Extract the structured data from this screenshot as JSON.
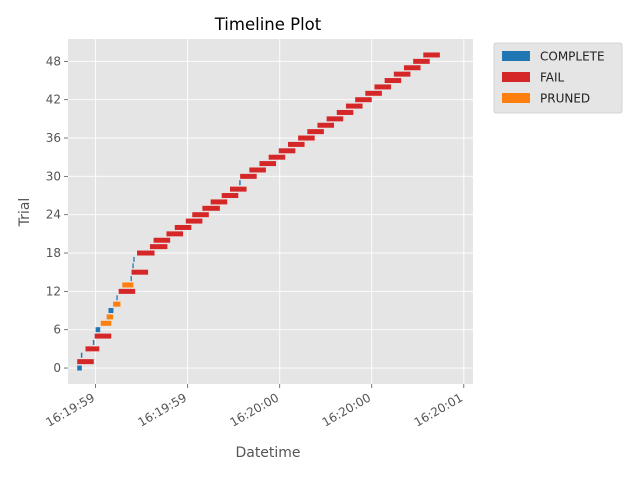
{
  "chart_data": {
    "type": "timeline",
    "title": "Timeline Plot",
    "xlabel": "Datetime",
    "ylabel": "Trial",
    "ylim": [
      -2.5,
      51.5
    ],
    "y_ticks": [
      0,
      6,
      12,
      18,
      24,
      30,
      36,
      42,
      48
    ],
    "x_tick_labels": [
      "16:19:59",
      "16:19:59",
      "16:20:00",
      "16:20:00",
      "16:20:01"
    ],
    "x_tick_seconds": [
      0.1,
      0.6,
      1.1,
      1.6,
      2.1
    ],
    "xlim_seconds": [
      -0.05,
      2.15
    ],
    "grid": true,
    "legend_position": "outside-right",
    "legend": [
      {
        "state": "COMPLETE",
        "label": "COMPLETE",
        "color": "#1f77b4"
      },
      {
        "state": "FAIL",
        "label": "FAIL",
        "color": "#d62728"
      },
      {
        "state": "PRUNED",
        "label": "PRUNED",
        "color": "#ff7f0e"
      }
    ],
    "time_origin": "16:19:59.000",
    "time_units": "seconds",
    "trials": [
      {
        "trial": 0,
        "start": 0.0,
        "end": 0.025,
        "state": "COMPLETE"
      },
      {
        "trial": 1,
        "start": 0.0,
        "end": 0.09,
        "state": "FAIL"
      },
      {
        "trial": 2,
        "start": 0.02,
        "end": 0.028,
        "state": "COMPLETE"
      },
      {
        "trial": 3,
        "start": 0.045,
        "end": 0.12,
        "state": "FAIL"
      },
      {
        "trial": 4,
        "start": 0.085,
        "end": 0.093,
        "state": "COMPLETE"
      },
      {
        "trial": 5,
        "start": 0.095,
        "end": 0.185,
        "state": "FAIL"
      },
      {
        "trial": 6,
        "start": 0.1,
        "end": 0.125,
        "state": "COMPLETE"
      },
      {
        "trial": 7,
        "start": 0.128,
        "end": 0.185,
        "state": "PRUNED"
      },
      {
        "trial": 8,
        "start": 0.16,
        "end": 0.195,
        "state": "PRUNED"
      },
      {
        "trial": 9,
        "start": 0.17,
        "end": 0.197,
        "state": "COMPLETE"
      },
      {
        "trial": 10,
        "start": 0.195,
        "end": 0.235,
        "state": "PRUNED"
      },
      {
        "trial": 11,
        "start": 0.213,
        "end": 0.22,
        "state": "COMPLETE"
      },
      {
        "trial": 12,
        "start": 0.225,
        "end": 0.315,
        "state": "FAIL"
      },
      {
        "trial": 13,
        "start": 0.245,
        "end": 0.305,
        "state": "PRUNED"
      },
      {
        "trial": 14,
        "start": 0.29,
        "end": 0.297,
        "state": "COMPLETE"
      },
      {
        "trial": 15,
        "start": 0.295,
        "end": 0.385,
        "state": "FAIL"
      },
      {
        "trial": 16,
        "start": 0.3,
        "end": 0.307,
        "state": "COMPLETE"
      },
      {
        "trial": 17,
        "start": 0.305,
        "end": 0.312,
        "state": "COMPLETE"
      },
      {
        "trial": 18,
        "start": 0.325,
        "end": 0.42,
        "state": "FAIL"
      },
      {
        "trial": 19,
        "start": 0.395,
        "end": 0.49,
        "state": "FAIL"
      },
      {
        "trial": 20,
        "start": 0.415,
        "end": 0.505,
        "state": "FAIL"
      },
      {
        "trial": 21,
        "start": 0.485,
        "end": 0.575,
        "state": "FAIL"
      },
      {
        "trial": 22,
        "start": 0.53,
        "end": 0.62,
        "state": "FAIL"
      },
      {
        "trial": 23,
        "start": 0.59,
        "end": 0.68,
        "state": "FAIL"
      },
      {
        "trial": 24,
        "start": 0.625,
        "end": 0.715,
        "state": "FAIL"
      },
      {
        "trial": 25,
        "start": 0.68,
        "end": 0.775,
        "state": "FAIL"
      },
      {
        "trial": 26,
        "start": 0.725,
        "end": 0.815,
        "state": "FAIL"
      },
      {
        "trial": 27,
        "start": 0.785,
        "end": 0.875,
        "state": "FAIL"
      },
      {
        "trial": 28,
        "start": 0.83,
        "end": 0.92,
        "state": "FAIL"
      },
      {
        "trial": 29,
        "start": 0.88,
        "end": 0.888,
        "state": "COMPLETE"
      },
      {
        "trial": 30,
        "start": 0.885,
        "end": 0.975,
        "state": "FAIL"
      },
      {
        "trial": 31,
        "start": 0.935,
        "end": 1.025,
        "state": "FAIL"
      },
      {
        "trial": 32,
        "start": 0.99,
        "end": 1.08,
        "state": "FAIL"
      },
      {
        "trial": 33,
        "start": 1.04,
        "end": 1.13,
        "state": "FAIL"
      },
      {
        "trial": 34,
        "start": 1.095,
        "end": 1.185,
        "state": "FAIL"
      },
      {
        "trial": 35,
        "start": 1.145,
        "end": 1.235,
        "state": "FAIL"
      },
      {
        "trial": 36,
        "start": 1.2,
        "end": 1.29,
        "state": "FAIL"
      },
      {
        "trial": 37,
        "start": 1.25,
        "end": 1.34,
        "state": "FAIL"
      },
      {
        "trial": 38,
        "start": 1.305,
        "end": 1.395,
        "state": "FAIL"
      },
      {
        "trial": 39,
        "start": 1.355,
        "end": 1.445,
        "state": "FAIL"
      },
      {
        "trial": 40,
        "start": 1.41,
        "end": 1.5,
        "state": "FAIL"
      },
      {
        "trial": 41,
        "start": 1.46,
        "end": 1.55,
        "state": "FAIL"
      },
      {
        "trial": 42,
        "start": 1.51,
        "end": 1.6,
        "state": "FAIL"
      },
      {
        "trial": 43,
        "start": 1.565,
        "end": 1.655,
        "state": "FAIL"
      },
      {
        "trial": 44,
        "start": 1.615,
        "end": 1.705,
        "state": "FAIL"
      },
      {
        "trial": 45,
        "start": 1.67,
        "end": 1.76,
        "state": "FAIL"
      },
      {
        "trial": 46,
        "start": 1.72,
        "end": 1.81,
        "state": "FAIL"
      },
      {
        "trial": 47,
        "start": 1.775,
        "end": 1.865,
        "state": "FAIL"
      },
      {
        "trial": 48,
        "start": 1.825,
        "end": 1.915,
        "state": "FAIL"
      },
      {
        "trial": 49,
        "start": 1.88,
        "end": 1.97,
        "state": "FAIL"
      }
    ]
  }
}
